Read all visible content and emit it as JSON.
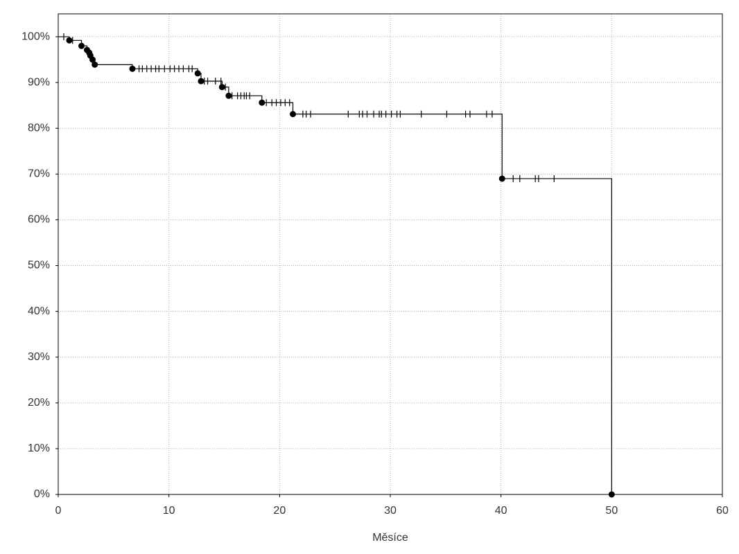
{
  "chart_data": {
    "type": "step",
    "x_label": "Měsíce",
    "x": [
      0,
      1.0,
      2.1,
      2.6,
      2.8,
      2.9,
      3.1,
      3.3,
      6.7,
      12.6,
      12.9,
      14.8,
      15.4,
      18.4,
      21.2,
      40.1,
      50.0
    ],
    "values": [
      100,
      99.2,
      98.0,
      97.1,
      96.5,
      95.9,
      95.0,
      93.9,
      93.0,
      92.0,
      90.3,
      89.0,
      87.1,
      85.6,
      83.1,
      69.0,
      0
    ],
    "color": "#000000",
    "censored": {
      "x": [
        0.5,
        1.3,
        7.3,
        7.6,
        8.0,
        8.4,
        8.8,
        9.1,
        9.6,
        10.1,
        10.5,
        10.9,
        11.3,
        11.8,
        12.1,
        13.2,
        13.5,
        14.2,
        14.7,
        15.1,
        15.7,
        16.2,
        16.5,
        16.8,
        17.0,
        17.3,
        18.8,
        19.3,
        19.7,
        20.1,
        20.5,
        20.9,
        22.1,
        22.4,
        22.8,
        26.2,
        27.2,
        27.5,
        27.9,
        28.5,
        29.0,
        29.2,
        29.6,
        30.1,
        30.6,
        30.9,
        32.8,
        35.1,
        36.8,
        37.2,
        38.7,
        39.2,
        41.1,
        41.7,
        43.1,
        43.4,
        44.8
      ],
      "values": [
        100,
        99.2,
        93.0,
        93.0,
        93.0,
        93.0,
        93.0,
        93.0,
        93.0,
        93.0,
        93.0,
        93.0,
        93.0,
        93.0,
        93.0,
        90.3,
        90.3,
        90.3,
        90.3,
        89.0,
        87.1,
        87.1,
        87.1,
        87.1,
        87.1,
        87.1,
        85.6,
        85.6,
        85.6,
        85.6,
        85.6,
        85.6,
        83.1,
        83.1,
        83.1,
        83.1,
        83.1,
        83.1,
        83.1,
        83.1,
        83.1,
        83.1,
        83.1,
        83.1,
        83.1,
        83.1,
        83.1,
        83.1,
        83.1,
        83.1,
        83.1,
        83.1,
        69.0,
        69.0,
        69.0,
        69.0,
        69.0
      ]
    },
    "xlim": [
      0,
      60
    ],
    "xticks": [
      0,
      10,
      20,
      30,
      40,
      50,
      60
    ],
    "ylim": [
      0,
      105
    ],
    "yticks": [
      {
        "value": 0,
        "label": "0%"
      },
      {
        "value": 10,
        "label": "10%"
      },
      {
        "value": 20,
        "label": "20%"
      },
      {
        "value": 30,
        "label": "30%"
      },
      {
        "value": 40,
        "label": "40%"
      },
      {
        "value": 50,
        "label": "50%"
      },
      {
        "value": 60,
        "label": "60%"
      },
      {
        "value": 70,
        "label": "70%"
      },
      {
        "value": 80,
        "label": "80%"
      },
      {
        "value": 90,
        "label": "90%"
      },
      {
        "value": 100,
        "label": "100%"
      }
    ],
    "grid": true
  }
}
